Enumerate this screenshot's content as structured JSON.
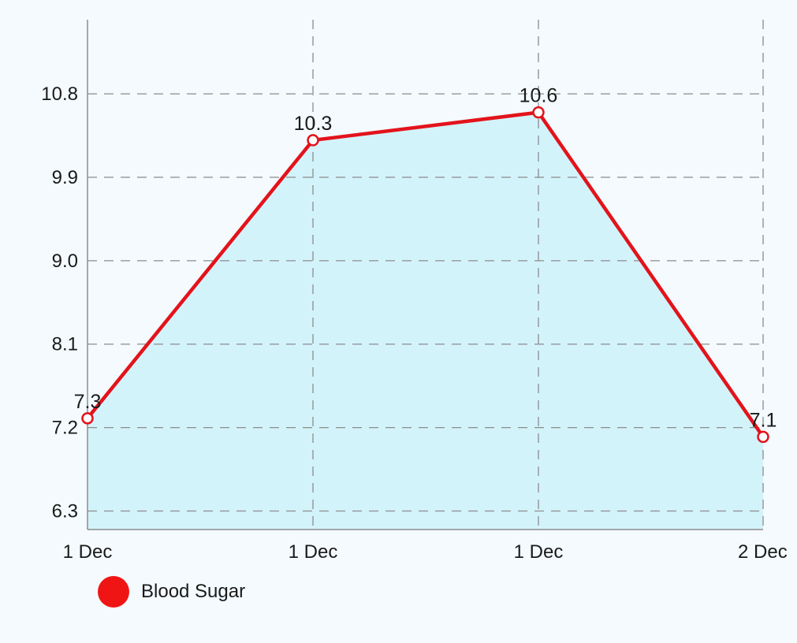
{
  "chart_data": {
    "type": "area",
    "categories": [
      "1 Dec",
      "1 Dec",
      "1 Dec",
      "2 Dec"
    ],
    "series": [
      {
        "name": "Blood Sugar",
        "values": [
          7.3,
          10.3,
          10.6,
          7.1
        ],
        "labels": [
          "7.3",
          "10.3",
          "10.6",
          "7.1"
        ]
      }
    ],
    "y_ticks": [
      "6.3",
      "7.2",
      "8.1",
      "9.0",
      "9.9",
      "10.8"
    ],
    "ylim": [
      6.1,
      11.6
    ],
    "grid": true,
    "legend_position": "bottom-left",
    "colors": {
      "line": "#e3131b",
      "fill": "#d3f3fb",
      "grid": "#8c8c8c",
      "axis": "#8c8c8c",
      "background": "#f4fafd",
      "legend_swatch": "#f01515"
    }
  }
}
